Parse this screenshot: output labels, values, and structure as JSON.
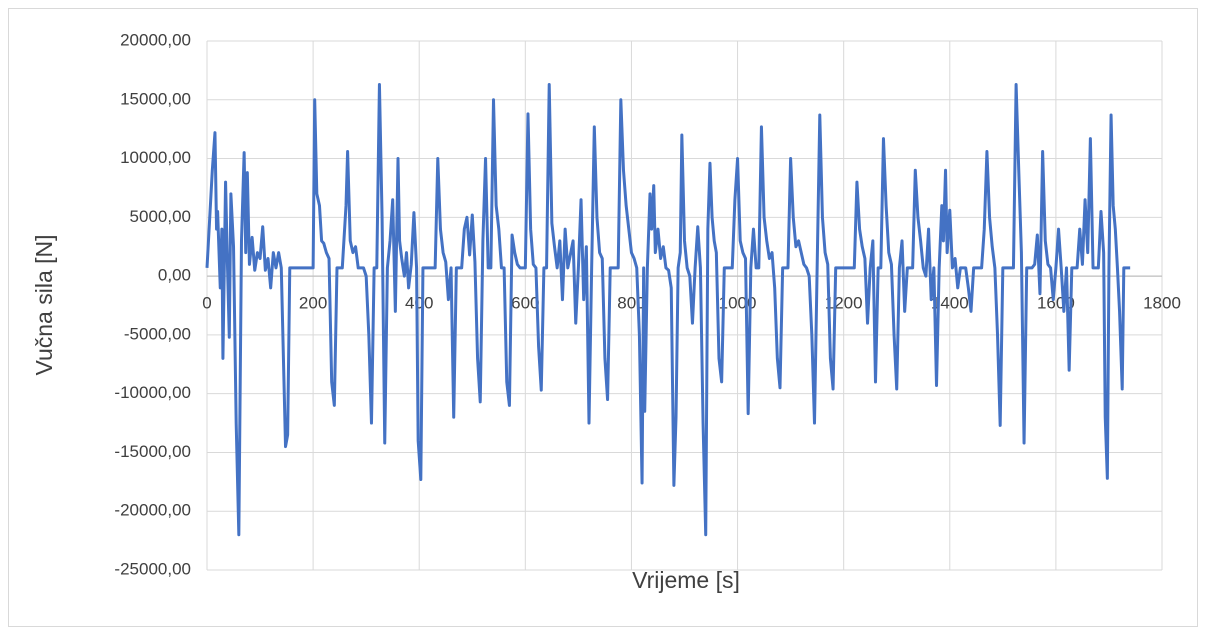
{
  "chart_data": {
    "type": "line",
    "xlabel": "Vrijeme [s]",
    "ylabel": "Vučna sila [N]",
    "xlim": [
      0,
      1800
    ],
    "xticks": [
      0,
      200,
      400,
      600,
      800,
      1000,
      1200,
      1400,
      1600,
      1800
    ],
    "ylim": [
      -25000,
      20000
    ],
    "yticks": [
      {
        "value": 20000,
        "label": "20000,00"
      },
      {
        "value": 15000,
        "label": "15000,00"
      },
      {
        "value": 10000,
        "label": "10000,00"
      },
      {
        "value": 5000,
        "label": "5000,00"
      },
      {
        "value": 0,
        "label": "0,00"
      },
      {
        "value": -5000,
        "label": "-5000,00"
      },
      {
        "value": -10000,
        "label": "-10000,00"
      },
      {
        "value": -15000,
        "label": "-15000,00"
      },
      {
        "value": -20000,
        "label": "-20000,00"
      },
      {
        "value": -25000,
        "label": "-25000,00"
      }
    ],
    "grid": true,
    "color": "#4472c4",
    "x": [
      0,
      10,
      15,
      18,
      20,
      25,
      28,
      30,
      35,
      38,
      42,
      45,
      50,
      55,
      60,
      65,
      70,
      73,
      76,
      80,
      85,
      90,
      95,
      100,
      105,
      110,
      115,
      120,
      125,
      130,
      135,
      140,
      148,
      152,
      156,
      200,
      203,
      207,
      212,
      216,
      220,
      225,
      230,
      235,
      240,
      245,
      255,
      262,
      265,
      270,
      275,
      280,
      285,
      295,
      300,
      305,
      310,
      315,
      320,
      325,
      330,
      335,
      340,
      345,
      350,
      355,
      360,
      363,
      367,
      372,
      376,
      380,
      385,
      390,
      395,
      398,
      403,
      407,
      430,
      435,
      440,
      445,
      450,
      455,
      460,
      465,
      470,
      480,
      485,
      490,
      495,
      500,
      505,
      510,
      515,
      520,
      525,
      530,
      535,
      540,
      545,
      550,
      555,
      560,
      565,
      570,
      575,
      580,
      585,
      590,
      600,
      605,
      610,
      615,
      620,
      625,
      630,
      635,
      640,
      645,
      650,
      655,
      660,
      665,
      670,
      675,
      680,
      690,
      695,
      700,
      705,
      710,
      715,
      720,
      725,
      730,
      735,
      740,
      745,
      750,
      755,
      760,
      775,
      780,
      785,
      790,
      795,
      800,
      805,
      810,
      815,
      820,
      823,
      825,
      830,
      835,
      838,
      842,
      845,
      850,
      855,
      860,
      865,
      870,
      875,
      880,
      884,
      888,
      892,
      895,
      900,
      905,
      910,
      915,
      920,
      925,
      930,
      935,
      940,
      944,
      948,
      952,
      956,
      960,
      965,
      970,
      975,
      990,
      995,
      1000,
      1005,
      1010,
      1015,
      1020,
      1025,
      1030,
      1035,
      1040,
      1045,
      1050,
      1055,
      1060,
      1065,
      1070,
      1075,
      1080,
      1085,
      1095,
      1100,
      1105,
      1110,
      1115,
      1120,
      1125,
      1130,
      1135,
      1140,
      1145,
      1150,
      1155,
      1160,
      1165,
      1170,
      1175,
      1180,
      1185,
      1220,
      1225,
      1230,
      1235,
      1240,
      1245,
      1250,
      1255,
      1260,
      1265,
      1270,
      1275,
      1280,
      1285,
      1290,
      1295,
      1300,
      1305,
      1310,
      1315,
      1320,
      1330,
      1335,
      1340,
      1345,
      1350,
      1355,
      1360,
      1365,
      1370,
      1375,
      1380,
      1385,
      1388,
      1392,
      1395,
      1400,
      1405,
      1410,
      1415,
      1420,
      1430,
      1435,
      1440,
      1445,
      1450,
      1460,
      1465,
      1470,
      1475,
      1480,
      1485,
      1490,
      1495,
      1500,
      1520,
      1525,
      1530,
      1535,
      1540,
      1545,
      1555,
      1560,
      1565,
      1570,
      1575,
      1580,
      1585,
      1590,
      1595,
      1600,
      1605,
      1610,
      1615,
      1620,
      1625,
      1630,
      1640,
      1645,
      1650,
      1655,
      1660,
      1665,
      1670,
      1680,
      1685,
      1690,
      1693,
      1697,
      1700,
      1704,
      1708,
      1712,
      1716,
      1720,
      1725,
      1728,
      1740
    ],
    "values": [
      700,
      9000,
      12200,
      4000,
      5500,
      -1000,
      4000,
      -7000,
      8000,
      2000,
      -5200,
      7000,
      2500,
      -12500,
      -22000,
      3000,
      10500,
      2000,
      8800,
      1000,
      3300,
      500,
      2000,
      1500,
      4200,
      500,
      1500,
      -1000,
      2000,
      700,
      2000,
      700,
      -14500,
      -13500,
      700,
      700,
      15000,
      7000,
      6000,
      3000,
      2800,
      2000,
      1500,
      -9000,
      -11000,
      700,
      700,
      6000,
      10600,
      3000,
      2000,
      2500,
      700,
      700,
      0,
      -5000,
      -12500,
      700,
      700,
      16300,
      5000,
      -14200,
      700,
      3000,
      6500,
      -3000,
      10000,
      3000,
      1500,
      0,
      2000,
      -1000,
      1000,
      5400,
      700,
      -14000,
      -17300,
      700,
      700,
      10000,
      4000,
      2000,
      1200,
      -2000,
      700,
      -12000,
      700,
      700,
      4000,
      5000,
      1800,
      5200,
      1200,
      -7000,
      -10700,
      3000,
      10000,
      700,
      700,
      15000,
      6000,
      4000,
      700,
      700,
      -9000,
      -11000,
      3500,
      2000,
      1000,
      700,
      700,
      13800,
      4000,
      1000,
      700,
      -6000,
      -9700,
      700,
      700,
      16300,
      4500,
      2500,
      700,
      3000,
      -2000,
      4000,
      700,
      3000,
      -4000,
      700,
      6500,
      -2000,
      2500,
      -12500,
      700,
      12700,
      5000,
      2000,
      1500,
      -7000,
      -10500,
      700,
      700,
      15000,
      9000,
      6000,
      4000,
      2000,
      1500,
      700,
      -5000,
      -17600,
      700,
      -11500,
      700,
      7000,
      4000,
      7700,
      2000,
      4000,
      1500,
      2500,
      700,
      500,
      -1000,
      -17800,
      -12000,
      700,
      2000,
      12000,
      3000,
      700,
      0,
      -4000,
      700,
      4200,
      700,
      -12500,
      -22000,
      4000,
      9600,
      5000,
      3000,
      2000,
      -7000,
      -9000,
      700,
      700,
      6500,
      10000,
      3000,
      2000,
      1500,
      -11700,
      700,
      4000,
      700,
      700,
      12700,
      5000,
      3000,
      1500,
      2000,
      -1000,
      -7000,
      -9500,
      700,
      700,
      10000,
      5000,
      2500,
      3000,
      2000,
      1000,
      700,
      0,
      -5000,
      -12500,
      700,
      13700,
      5000,
      2000,
      1000,
      -7000,
      -9600,
      700,
      700,
      8000,
      4000,
      2500,
      1500,
      -4000,
      700,
      3000,
      -9000,
      700,
      700,
      11700,
      6000,
      2000,
      1000,
      -5000,
      -9600,
      700,
      3000,
      -3000,
      700,
      700,
      9000,
      5000,
      3000,
      700,
      0,
      4000,
      -2000,
      700,
      -9300,
      700,
      6000,
      3000,
      9000,
      2000,
      5600,
      700,
      1500,
      -1000,
      700,
      700,
      -1000,
      -3000,
      700,
      700,
      700,
      4000,
      10600,
      5000,
      2500,
      700,
      -5000,
      -12700,
      700,
      700,
      16300,
      9000,
      2000,
      -14200,
      700,
      700,
      1000,
      3500,
      -1500,
      10600,
      3000,
      1000,
      700,
      -2000,
      700,
      4000,
      700,
      -3000,
      700,
      -8000,
      700,
      700,
      4000,
      1000,
      6500,
      2000,
      11700,
      700,
      700,
      5500,
      2000,
      -12000,
      -17200,
      700,
      13700,
      6000,
      4000,
      700,
      -3000,
      -9600,
      700,
      700
    ]
  }
}
